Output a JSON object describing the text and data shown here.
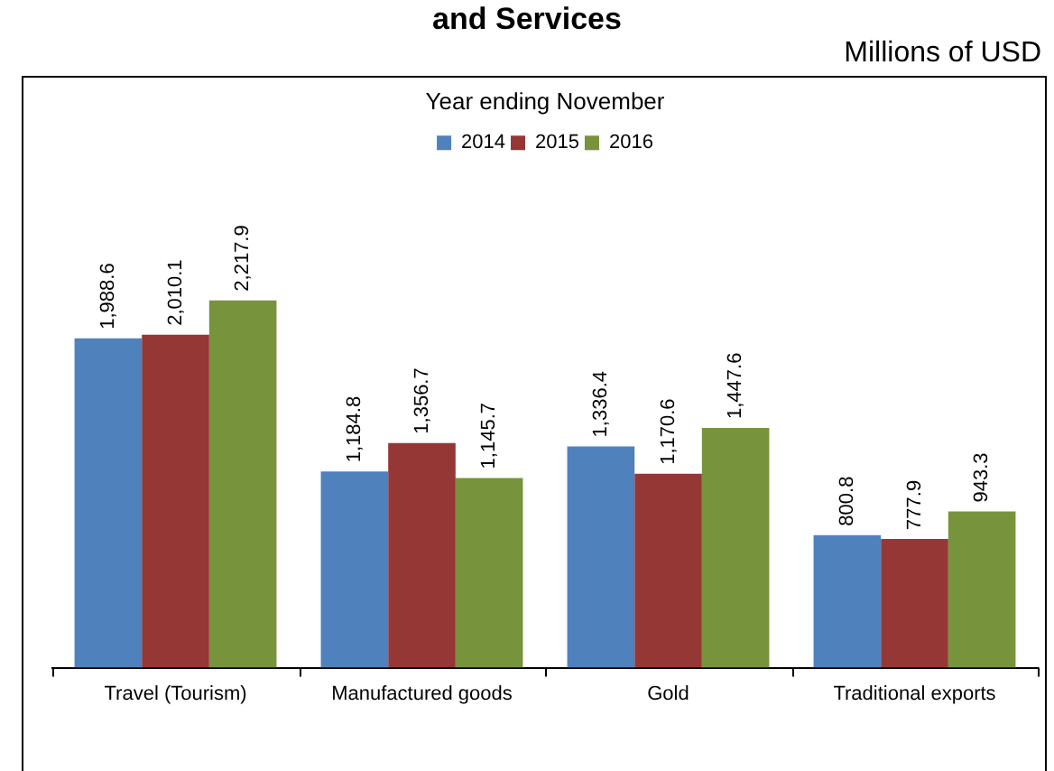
{
  "chart_data": {
    "type": "bar",
    "title": "and Services",
    "subtitle": "Year ending November",
    "annotations": [
      "Millions of USD"
    ],
    "categories": [
      "Travel (Tourism)",
      "Manufactured goods",
      "Gold",
      "Traditional exports"
    ],
    "series": [
      {
        "name": "2014",
        "color": "#4f81bd",
        "values": [
          1988.6,
          1184.8,
          1336.4,
          800.8
        ],
        "value_labels": [
          "1,988.6",
          "1,184.8",
          "1,336.4",
          "800.8"
        ]
      },
      {
        "name": "2015",
        "color": "#953735",
        "values": [
          2010.1,
          1356.7,
          1170.6,
          777.9
        ],
        "value_labels": [
          "2,010.1",
          "1,356.7",
          "1,170.6",
          "777.9"
        ]
      },
      {
        "name": "2016",
        "color": "#77933c",
        "values": [
          2217.9,
          1145.7,
          1447.6,
          943.3
        ],
        "value_labels": [
          "2,217.9",
          "1,145.7",
          "1,447.6",
          "943.3"
        ]
      }
    ],
    "legend": "top",
    "grid": false,
    "tick_labels": "x"
  }
}
